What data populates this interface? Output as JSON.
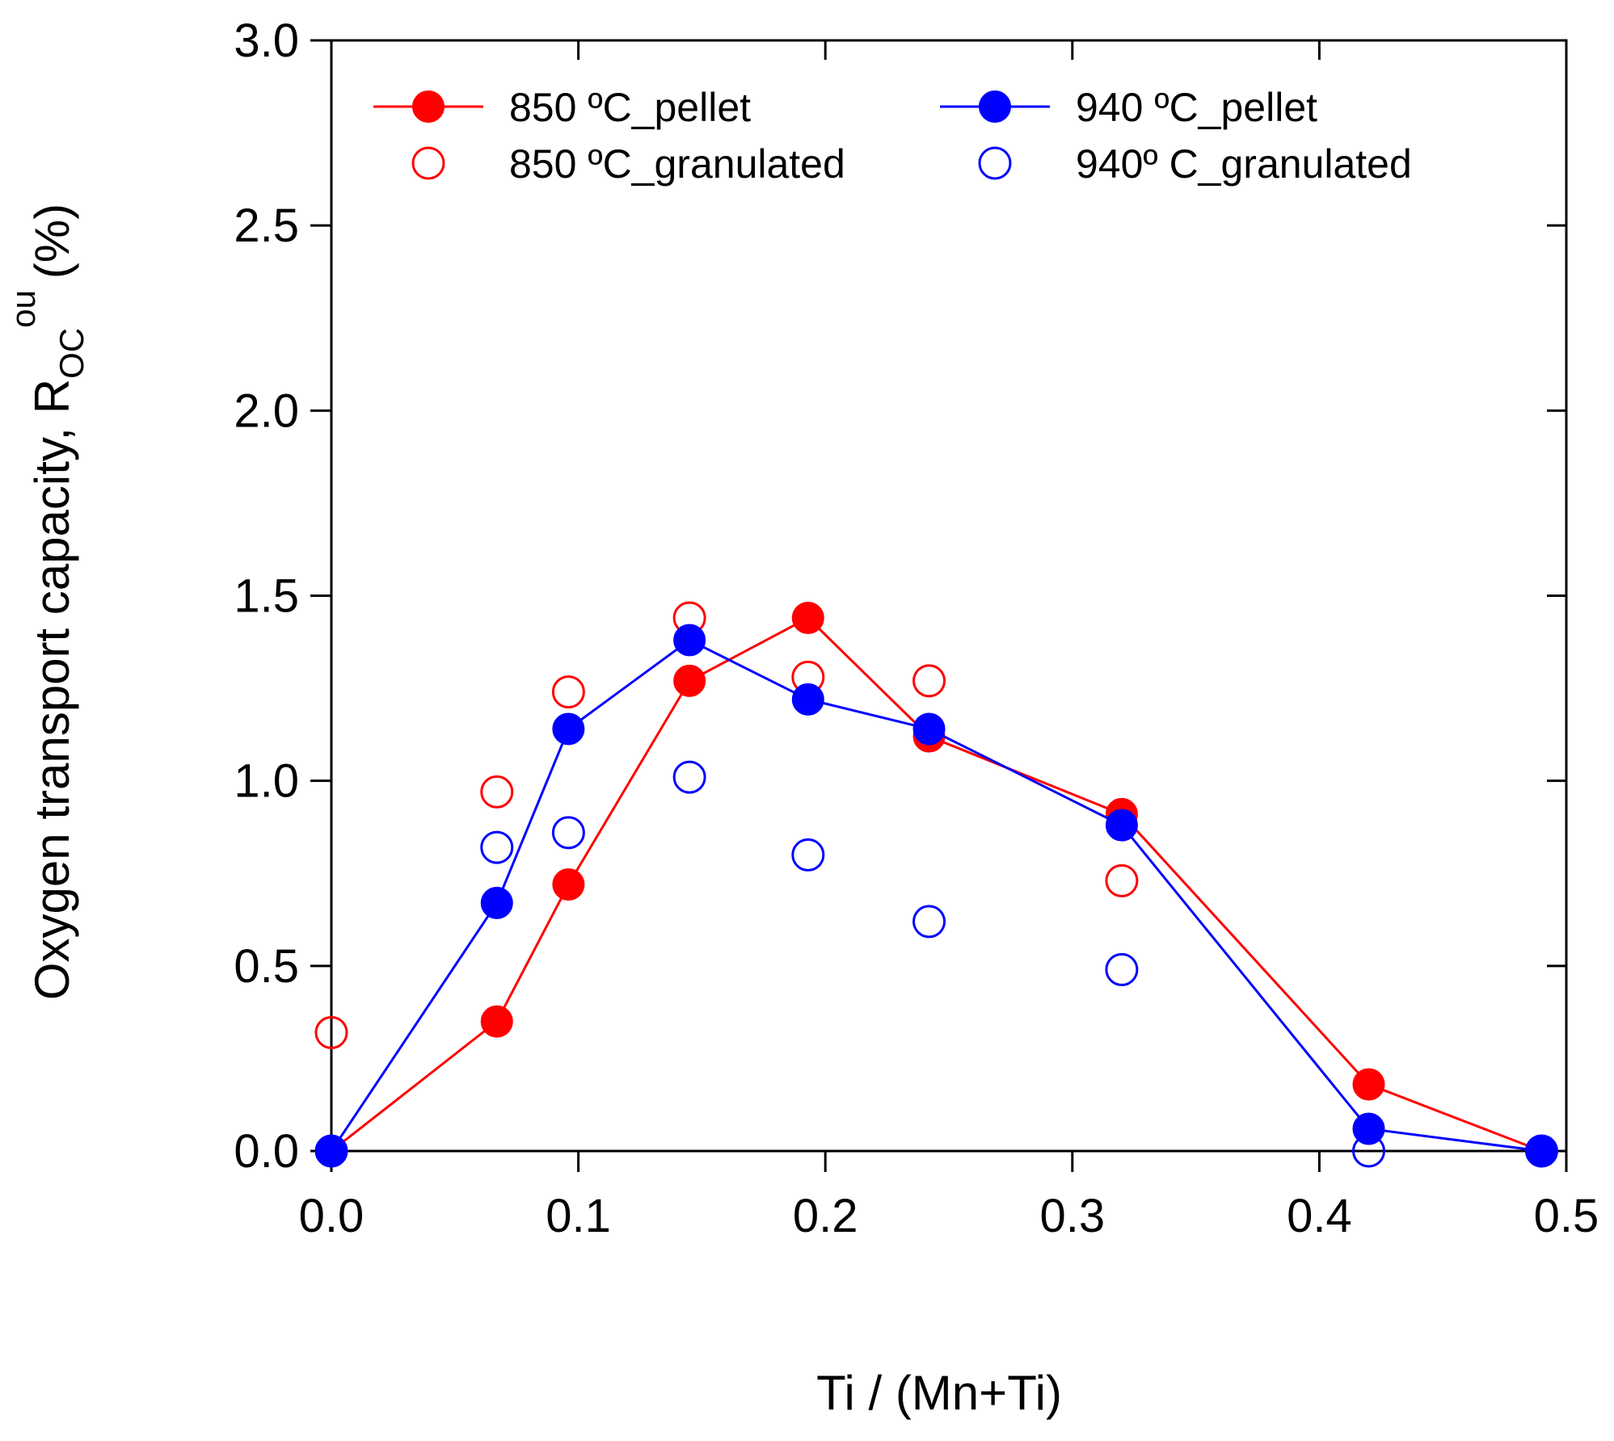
{
  "chart_data": {
    "type": "scatter",
    "title": "",
    "xlabel": "Ti / (Mn+Ti)",
    "ylabel": {
      "main": "Oxygen transport capacity, R",
      "subscript": "OC",
      "superscript": "ou",
      "unit": "(%)"
    },
    "xlim": [
      0.0,
      0.5
    ],
    "ylim": [
      0.0,
      3.0
    ],
    "x_ticks": [
      "0.0",
      "0.1",
      "0.2",
      "0.3",
      "0.4",
      "0.5"
    ],
    "y_ticks": [
      "0.0",
      "0.5",
      "1.0",
      "1.5",
      "2.0",
      "2.5",
      "3.0"
    ],
    "grid": false,
    "legend_position": "top",
    "series": [
      {
        "name": "850 ºC_pellet",
        "color": "#ff0000",
        "marker": "filled-circle",
        "line": true,
        "x": [
          0.0,
          0.067,
          0.096,
          0.145,
          0.193,
          0.242,
          0.32,
          0.42,
          0.49
        ],
        "y": [
          0.0,
          0.35,
          0.72,
          1.27,
          1.44,
          1.12,
          0.91,
          0.18,
          0.0
        ]
      },
      {
        "name": "850 ºC_granulated",
        "color": "#ff0000",
        "marker": "open-circle",
        "line": false,
        "x": [
          0.0,
          0.067,
          0.096,
          0.145,
          0.193,
          0.242,
          0.32
        ],
        "y": [
          0.32,
          0.97,
          1.24,
          1.44,
          1.28,
          1.27,
          0.73
        ]
      },
      {
        "name": "940 ºC_pellet",
        "color": "#0000ff",
        "marker": "filled-circle",
        "line": true,
        "x": [
          0.0,
          0.067,
          0.096,
          0.145,
          0.193,
          0.242,
          0.32,
          0.42,
          0.49
        ],
        "y": [
          0.0,
          0.67,
          1.14,
          1.38,
          1.22,
          1.14,
          0.88,
          0.06,
          0.0
        ]
      },
      {
        "name": "940º C_granulated",
        "color": "#0000ff",
        "marker": "open-circle",
        "line": false,
        "x": [
          0.0,
          0.067,
          0.096,
          0.145,
          0.193,
          0.242,
          0.32,
          0.42,
          0.49
        ],
        "y": [
          0.0,
          0.82,
          0.86,
          1.01,
          0.8,
          0.62,
          0.49,
          0.0,
          0.0
        ]
      }
    ]
  }
}
